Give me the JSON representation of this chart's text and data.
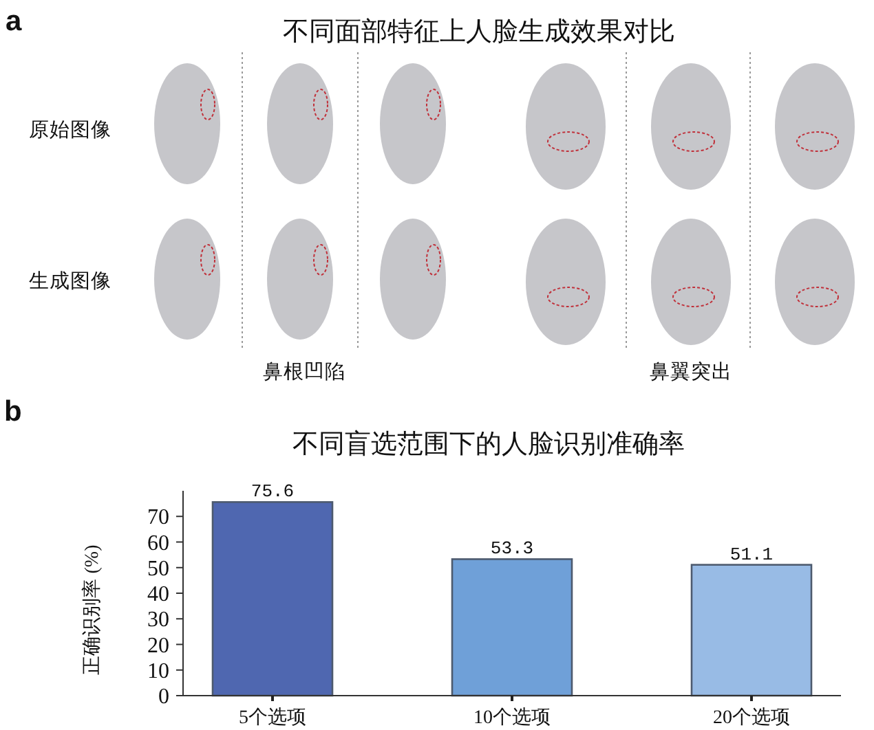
{
  "chart_data": [
    {
      "type": "other",
      "title": "不同面部特征上人脸生成效果对比",
      "annotations": [
        "a",
        "原始图像",
        "生成图像",
        "鼻根凹陷",
        "鼻翼突出"
      ]
    },
    {
      "type": "bar",
      "title": "不同盲选范围下的人脸识别准确率",
      "annotations": [
        "b"
      ],
      "ylabel": "正确识别率 (%)",
      "categories": [
        "5个选项",
        "10个选项",
        "20个选项"
      ],
      "values": [
        75.6,
        53.3,
        51.1
      ],
      "colors": [
        "#4f67b0",
        "#6fa0d8",
        "#98bbe5"
      ],
      "ylim": [
        0,
        80
      ],
      "yticks": [
        0,
        10,
        20,
        30,
        40,
        50,
        60,
        70
      ],
      "data_labels": true
    }
  ]
}
